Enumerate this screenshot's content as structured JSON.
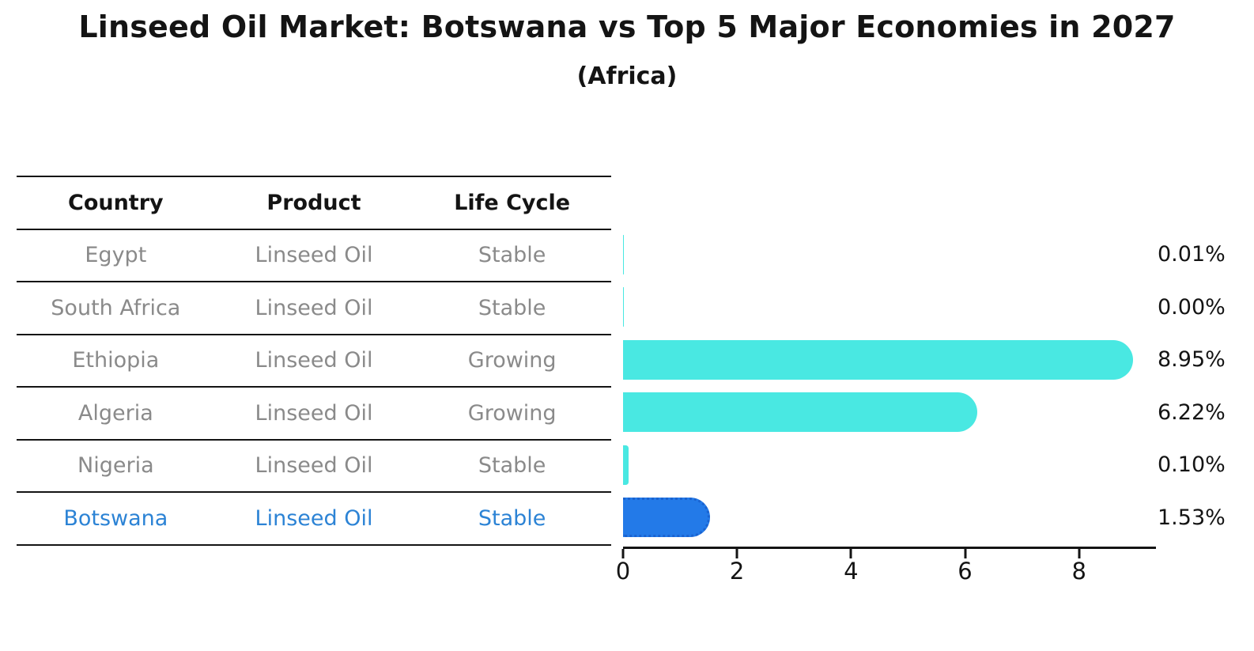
{
  "title": "Linseed Oil Market: Botswana vs Top 5 Major Economies in 2027",
  "subtitle": "(Africa)",
  "colors": {
    "bar_default": "#49e8e2",
    "bar_highlight": "#237ae8",
    "bar_highlight_border": "#1a63d0",
    "highlight_text": "#2c83d5",
    "row_text": "#8a8a8a",
    "header_text": "#141414",
    "axis": "#141414"
  },
  "table": {
    "headers": [
      "Country",
      "Product",
      "Life Cycle"
    ],
    "rows": [
      {
        "country": "Egypt",
        "product": "Linseed Oil",
        "life_cycle": "Stable",
        "highlight": false
      },
      {
        "country": "South Africa",
        "product": "Linseed Oil",
        "life_cycle": "Stable",
        "highlight": false
      },
      {
        "country": "Ethiopia",
        "product": "Linseed Oil",
        "life_cycle": "Growing",
        "highlight": false
      },
      {
        "country": "Algeria",
        "product": "Linseed Oil",
        "life_cycle": "Growing",
        "highlight": false
      },
      {
        "country": "Nigeria",
        "product": "Linseed Oil",
        "life_cycle": "Stable",
        "highlight": false
      },
      {
        "country": "Botswana",
        "product": "Linseed Oil",
        "life_cycle": "Stable",
        "highlight": true
      }
    ]
  },
  "chart_data": {
    "type": "bar",
    "orientation": "horizontal",
    "title": "Linseed Oil Market: Botswana vs Top 5 Major Economies in 2027",
    "subtitle": "(Africa)",
    "categories": [
      "Egypt",
      "South Africa",
      "Ethiopia",
      "Algeria",
      "Nigeria",
      "Botswana"
    ],
    "values": [
      0.01,
      0.0,
      8.95,
      6.22,
      0.1,
      1.53
    ],
    "value_labels": [
      "0.01%",
      "0.00%",
      "8.95%",
      "6.22%",
      "0.10%",
      "1.53%"
    ],
    "highlight_index": 5,
    "xlabel": "",
    "ylabel": "",
    "xlim": [
      0,
      9.35
    ],
    "x_ticks": [
      0,
      2,
      4,
      6,
      8
    ],
    "grid": false,
    "legend": false
  }
}
